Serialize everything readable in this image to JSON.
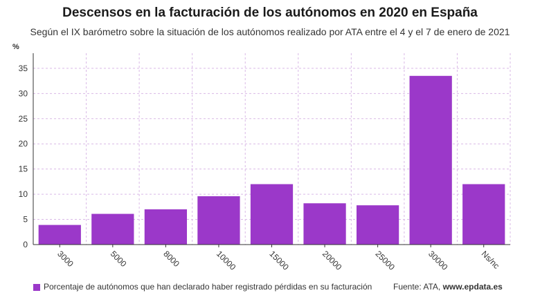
{
  "title": "Descensos en la facturación de los autónomos en 2020 en España",
  "subtitle": "Según el IX barómetro sobre la situación de los autónomos realizado por ATA entre el 4 y el 7 de enero de 2021",
  "colors": {
    "bar": "#9b38c9",
    "grid": "#d9b8e6",
    "axis": "#333333"
  },
  "footer": {
    "legend_label": "Porcentaje de autónomos que han declarado haber registrado pérdidas en su facturación",
    "source_prefix": "Fuente: ATA, ",
    "source_site": "www.epdata.es"
  },
  "chart_data": {
    "type": "bar",
    "title": "Descensos en la facturación de los autónomos en 2020 en España",
    "ylabel": "%",
    "xlabel": "",
    "ylim": [
      0,
      38
    ],
    "yticks": [
      0,
      5,
      10,
      15,
      20,
      25,
      30,
      35
    ],
    "categories": [
      "3000",
      "5000",
      "8000",
      "10000",
      "15000",
      "20000",
      "25000",
      "30000",
      "Ns/nc"
    ],
    "series": [
      {
        "name": "Porcentaje de autónomos que han declarado haber registrado pérdidas en su facturación",
        "values": [
          3.9,
          6.1,
          7.0,
          9.6,
          12.0,
          8.2,
          7.8,
          33.5,
          12.0
        ]
      }
    ],
    "legend": "bottom-left",
    "grid": true
  }
}
